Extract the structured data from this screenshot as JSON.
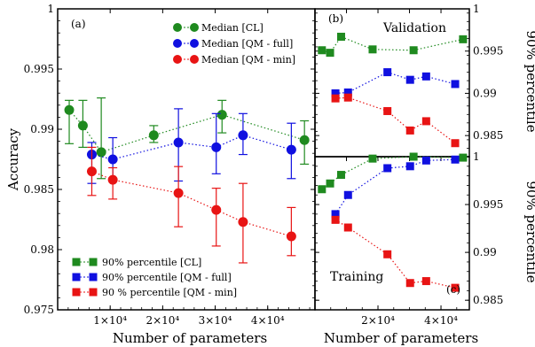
{
  "colors": {
    "CL": "#1f8a1f",
    "QM_full": "#1010e0",
    "QM_min": "#e81414"
  },
  "chart_data": [
    {
      "type": "scatter",
      "panel": "(a)",
      "xlabel": "Number of parameters",
      "ylabel": "Accuracy",
      "xlim": [
        0,
        49000
      ],
      "ylim": [
        0.975,
        1.0
      ],
      "xticks": [
        10000,
        20000,
        30000,
        40000
      ],
      "xtick_labels": [
        "1×10⁴",
        "2×10⁴",
        "3×10⁴",
        "4×10⁴"
      ],
      "yticks": [
        0.975,
        0.98,
        0.985,
        0.99,
        0.995,
        1.0
      ],
      "ytick_labels": [
        "0.975",
        "0.98",
        "0.985",
        "0.99",
        "0.995",
        "1"
      ],
      "legend_top": [
        "Median [CL]",
        "Median [QM - full]",
        "Median [QM - min]"
      ],
      "legend_bottom": [
        "90% percentile [CL]",
        "90% percentile [QM - full]",
        "90 % percentile [QM - min]"
      ],
      "series": [
        {
          "name": "Median [CL]",
          "color_key": "CL",
          "x": [
            2200,
            4800,
            8300,
            18300,
            31300,
            47000
          ],
          "y": [
            0.9916,
            0.9903,
            0.9881,
            0.9895,
            0.9912,
            0.9891
          ],
          "err": [
            [
              0.9888,
              0.9924
            ],
            [
              0.9885,
              0.9924
            ],
            [
              0.9859,
              0.9926
            ],
            [
              0.9889,
              0.9903
            ],
            [
              0.9897,
              0.9924
            ],
            [
              0.9871,
              0.9907
            ]
          ]
        },
        {
          "name": "Median [QM - full]",
          "color_key": "QM_full",
          "x": [
            6500,
            10500,
            23000,
            30200,
            35300,
            44500
          ],
          "y": [
            0.9879,
            0.9875,
            0.9889,
            0.9885,
            0.9895,
            0.9883
          ],
          "err": [
            [
              0.9855,
              0.9889
            ],
            [
              0.9859,
              0.9893
            ],
            [
              0.9857,
              0.9917
            ],
            [
              0.9863,
              0.9913
            ],
            [
              0.9879,
              0.9913
            ],
            [
              0.9859,
              0.9905
            ]
          ]
        },
        {
          "name": "Median [QM - min]",
          "color_key": "QM_min",
          "x": [
            6500,
            10500,
            23000,
            30200,
            35300,
            44500
          ],
          "y": [
            0.9865,
            0.9858,
            0.9847,
            0.9833,
            0.9823,
            0.9811
          ],
          "err": [
            [
              0.9845,
              0.9885
            ],
            [
              0.9842,
              0.9868
            ],
            [
              0.9819,
              0.9869
            ],
            [
              0.9803,
              0.9851
            ],
            [
              0.9789,
              0.9855
            ],
            [
              0.9795,
              0.9835
            ]
          ]
        }
      ]
    },
    {
      "type": "scatter",
      "panel": "(b)",
      "title": "Validation",
      "ylabel": "90% percentile",
      "xlim": [
        0,
        49000
      ],
      "ylim": [
        0.9825,
        1.0
      ],
      "yticks": [
        0.985,
        0.99,
        0.995,
        1.0
      ],
      "ytick_labels": [
        "0.985",
        "0.99",
        "0.995",
        "1"
      ],
      "series": [
        {
          "name": "90% percentile [CL]",
          "color_key": "CL",
          "x": [
            2200,
            4800,
            8300,
            18300,
            31300,
            47000
          ],
          "y": [
            0.9951,
            0.9948,
            0.9967,
            0.9952,
            0.9951,
            0.9964
          ]
        },
        {
          "name": "90% percentile [QM - full]",
          "color_key": "QM_full",
          "x": [
            6500,
            10500,
            23000,
            30200,
            35300,
            44500
          ],
          "y": [
            0.99,
            0.9901,
            0.9925,
            0.9916,
            0.992,
            0.9911
          ]
        },
        {
          "name": "90 % percentile [QM - min]",
          "color_key": "QM_min",
          "x": [
            6500,
            10500,
            23000,
            30200,
            35300,
            44500
          ],
          "y": [
            0.9894,
            0.9895,
            0.9879,
            0.9856,
            0.9867,
            0.9841
          ]
        }
      ]
    },
    {
      "type": "scatter",
      "panel": "(c)",
      "title": "Training",
      "xlabel": "Number of parameters",
      "ylabel": "90% percentile",
      "xlim": [
        0,
        49000
      ],
      "ylim": [
        0.984,
        1.0
      ],
      "xticks": [
        20000,
        40000
      ],
      "xtick_labels": [
        "2×10⁴",
        "4×10⁴"
      ],
      "yticks": [
        0.985,
        0.99,
        0.995,
        1.0
      ],
      "ytick_labels": [
        "0.985",
        "0.99",
        "0.995",
        "1"
      ],
      "series": [
        {
          "name": "90% percentile [CL]",
          "color_key": "CL",
          "x": [
            2200,
            4800,
            8300,
            18300,
            31300,
            47000
          ],
          "y": [
            0.9966,
            0.9972,
            0.9981,
            0.9998,
            1.0,
            0.9999
          ]
        },
        {
          "name": "90% percentile [QM - full]",
          "color_key": "QM_full",
          "x": [
            6500,
            10500,
            23000,
            30200,
            35300,
            44500
          ],
          "y": [
            0.994,
            0.996,
            0.9988,
            0.999,
            0.9996,
            0.9997
          ]
        },
        {
          "name": "90 % percentile [QM - min]",
          "color_key": "QM_min",
          "x": [
            6500,
            10500,
            23000,
            30200,
            35300,
            44500
          ],
          "y": [
            0.9934,
            0.9926,
            0.9898,
            0.9868,
            0.987,
            0.9863
          ]
        }
      ]
    }
  ]
}
